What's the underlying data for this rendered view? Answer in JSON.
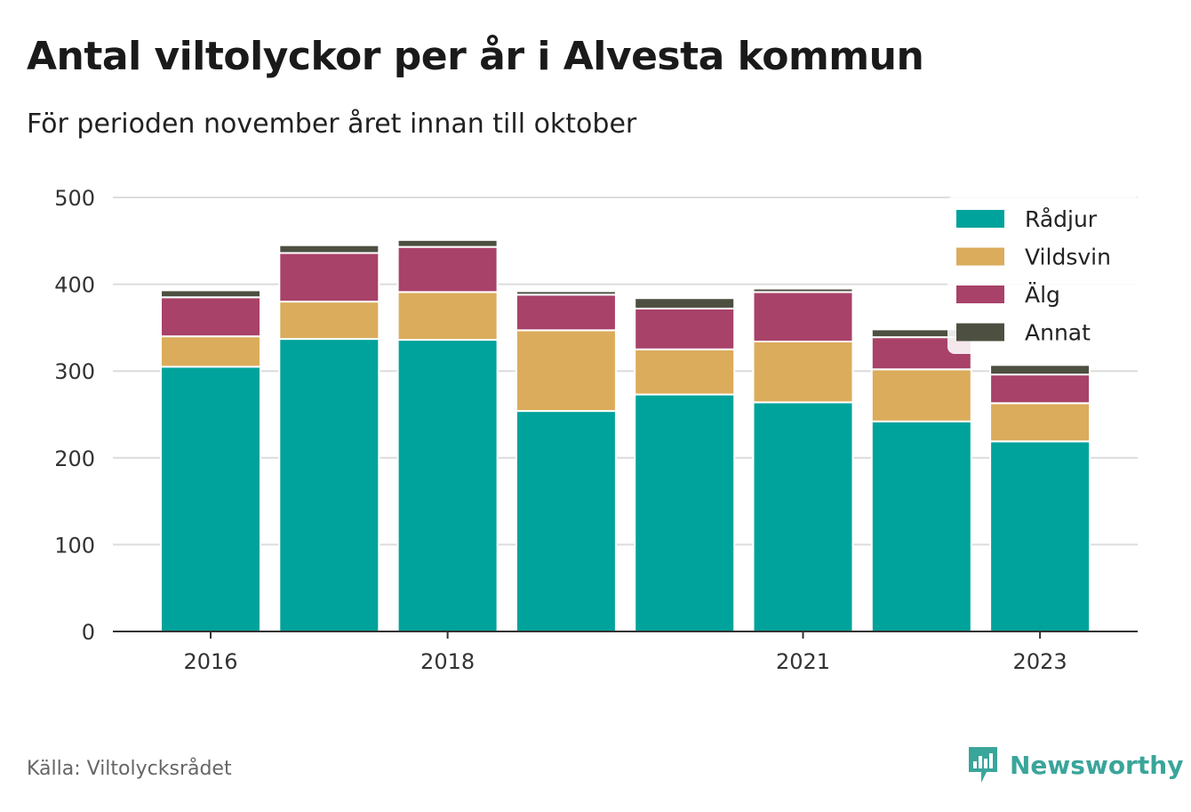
{
  "title": "Antal viltolyckor per år i Alvesta kommun",
  "subtitle": "För perioden november året innan till oktober",
  "source": "Källa: Viltolycksrådet",
  "brand": "Newsworthy",
  "colors": {
    "radjur": "#00a39b",
    "vildsvin": "#dbac5b",
    "alg": "#a84268",
    "annat": "#4d4f41",
    "grid": "#dcdcdc",
    "axis": "#333333",
    "brand": "#3aa59a"
  },
  "chart_data": {
    "type": "bar",
    "stacked": true,
    "x": [
      2016,
      2017,
      2018,
      2019,
      2020,
      2021,
      2022,
      2023
    ],
    "x_tick_labels": [
      "2016",
      "2018",
      "2021",
      "2023"
    ],
    "x_tick_values": [
      2016,
      2018,
      2021,
      2023
    ],
    "y_ticks": [
      0,
      100,
      200,
      300,
      400,
      500
    ],
    "ylim": [
      0,
      500
    ],
    "grid": true,
    "legend_position": "top-right",
    "series": [
      {
        "name": "Rådjur",
        "color_key": "radjur",
        "values": [
          305,
          337,
          336,
          254,
          273,
          264,
          242,
          219
        ]
      },
      {
        "name": "Vildsvin",
        "color_key": "vildsvin",
        "values": [
          35,
          43,
          55,
          93,
          52,
          70,
          60,
          44
        ]
      },
      {
        "name": "Älg",
        "color_key": "alg",
        "values": [
          45,
          56,
          52,
          41,
          47,
          57,
          37,
          33
        ]
      },
      {
        "name": "Annat",
        "color_key": "annat",
        "values": [
          8,
          9,
          8,
          4,
          12,
          4,
          9,
          11
        ]
      }
    ]
  }
}
